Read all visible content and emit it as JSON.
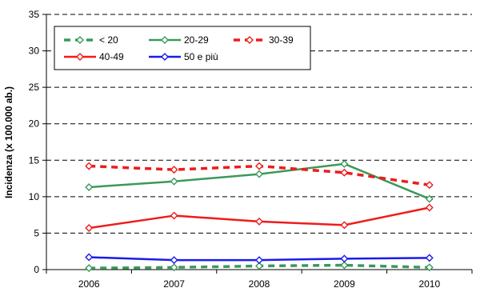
{
  "chart_data": {
    "type": "line",
    "ylabel": "Incidenza (x 100.000 ab.)",
    "xlabel": "",
    "categories": [
      "2006",
      "2007",
      "2008",
      "2009",
      "2010"
    ],
    "ylim": [
      0,
      35
    ],
    "yticks": [
      0,
      5,
      10,
      15,
      20,
      25,
      30,
      35
    ],
    "grid": "horizontal-dashed",
    "legend_placement": "top-left",
    "series": [
      {
        "name": "< 20",
        "values": [
          0.2,
          0.3,
          0.5,
          0.6,
          0.3
        ],
        "color": "#3a9a5a",
        "dash": "dashed"
      },
      {
        "name": "20-29",
        "values": [
          11.3,
          12.1,
          13.1,
          14.5,
          9.7
        ],
        "color": "#3a9a5a",
        "dash": "solid"
      },
      {
        "name": "30-39",
        "values": [
          14.2,
          13.7,
          14.2,
          13.3,
          11.6
        ],
        "color": "#ee1c1c",
        "dash": "dashed"
      },
      {
        "name": "40-49",
        "values": [
          5.7,
          7.4,
          6.6,
          6.1,
          8.5
        ],
        "color": "#ee1c1c",
        "dash": "solid"
      },
      {
        "name": "50 e più",
        "values": [
          1.7,
          1.3,
          1.3,
          1.5,
          1.6
        ],
        "color": "#1a1aee",
        "dash": "solid"
      }
    ]
  }
}
